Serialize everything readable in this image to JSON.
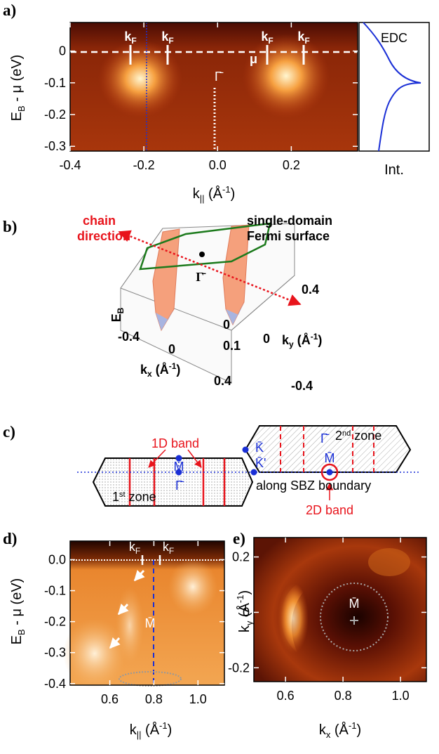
{
  "panel_a": {
    "letter": "a)",
    "ylabel": [
      "E",
      "B",
      " - μ (eV)"
    ],
    "xlabel": [
      "k",
      "||",
      " (Å",
      "-1",
      ")"
    ],
    "xlim": [
      -0.4,
      0.38
    ],
    "ylim": [
      -0.315,
      0.09
    ],
    "xticks": [
      -0.4,
      -0.2,
      {
        "value": 0,
        "label": "0.0"
      },
      0.2
    ],
    "yticks": [
      0,
      -0.1,
      -0.2,
      -0.3
    ],
    "kf_labels": [
      [
        "k",
        "F"
      ],
      [
        "k",
        "F"
      ],
      [
        "k",
        "F"
      ],
      [
        "k",
        "F"
      ]
    ],
    "mu": "μ",
    "gamma": "Γ̄",
    "edc_title": "EDC",
    "edc_xlabel": "Int."
  },
  "panel_b": {
    "letter": "b)",
    "chain": [
      "chain",
      "direction"
    ],
    "fermi": [
      "single-domain",
      "Fermi surface"
    ],
    "eb": [
      "E",
      "B"
    ],
    "gamma": "Γ̄",
    "ky_ticks": [
      "0.4",
      "0",
      "-0.4"
    ],
    "ky_label": [
      "k",
      "y",
      " (Å",
      "-1",
      ")"
    ],
    "kx_ticks": [
      "-0.4",
      "0",
      "0.4"
    ],
    "kx_label": [
      "k",
      "x",
      " (Å",
      "-1",
      ")"
    ],
    "eb_tick": "0.1",
    "eb_zero": "0"
  },
  "panel_c": {
    "letter": "c)",
    "band_1d": "1D band",
    "m1": "M̄",
    "g1": "Γ̄",
    "zone1": [
      "1",
      "st",
      " zone"
    ],
    "k": "K̄",
    "k2": "K̄'",
    "g2": "Γ̄",
    "zone2": [
      "2",
      "nd",
      " zone"
    ],
    "m2": "M̄",
    "boundary": "along SBZ boundary",
    "band_2d": "2D band"
  },
  "panel_d": {
    "letter": "d)",
    "ylabel": [
      "E",
      "B",
      " - μ (eV)"
    ],
    "xlabel": [
      "k",
      "||",
      " (Å",
      "-1",
      ")"
    ],
    "xlim": [
      0.42,
      1.12
    ],
    "ylim": [
      -0.405,
      0.06
    ],
    "xticks": [
      0.6,
      0.8,
      {
        "value": 1,
        "label": "1.0"
      }
    ],
    "yticks": [
      {
        "value": 0,
        "label": "0.0"
      },
      -0.1,
      -0.2,
      -0.3,
      -0.4
    ],
    "kf_labels": [
      [
        "k",
        "F"
      ],
      [
        "k",
        "F"
      ]
    ],
    "m": "M̄"
  },
  "panel_e": {
    "letter": "e)",
    "ylabel": [
      "k",
      "y",
      " (Å",
      "-1",
      ")"
    ],
    "xlabel": [
      "k",
      "x",
      " (Å",
      "-1",
      ")"
    ],
    "xlim": [
      0.49,
      1.09
    ],
    "ylim": [
      -0.25,
      0.27
    ],
    "xticks": [
      0.6,
      0.8,
      {
        "value": 1,
        "label": "1.0"
      }
    ],
    "yticks": [
      0.2,
      0,
      -0.2
    ],
    "m": "M̄"
  }
}
